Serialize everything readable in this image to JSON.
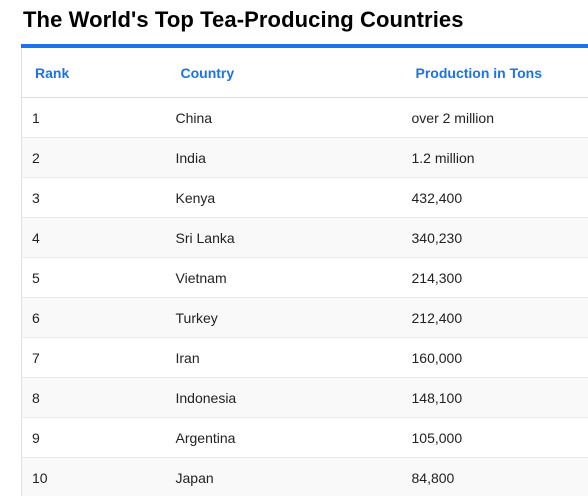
{
  "title": "The World's Top Tea-Producing Countries",
  "table": {
    "headers": {
      "rank": "Rank",
      "country": "Country",
      "production": "Production in Tons"
    },
    "rows": [
      {
        "rank": "1",
        "country": "China",
        "production": "over 2 million"
      },
      {
        "rank": "2",
        "country": "India",
        "production": "1.2 million"
      },
      {
        "rank": "3",
        "country": "Kenya",
        "production": "432,400"
      },
      {
        "rank": "4",
        "country": "Sri Lanka",
        "production": "340,230"
      },
      {
        "rank": "5",
        "country": "Vietnam",
        "production": "214,300"
      },
      {
        "rank": "6",
        "country": "Turkey",
        "production": "212,400"
      },
      {
        "rank": "7",
        "country": "Iran",
        "production": "160,000"
      },
      {
        "rank": "8",
        "country": "Indonesia",
        "production": "148,100"
      },
      {
        "rank": "9",
        "country": "Argentina",
        "production": "105,000"
      },
      {
        "rank": "10",
        "country": "Japan",
        "production": "84,800"
      }
    ]
  },
  "colors": {
    "accent": "#1a73e8",
    "row_alt": "#f9f9f9",
    "text": "#222222"
  }
}
